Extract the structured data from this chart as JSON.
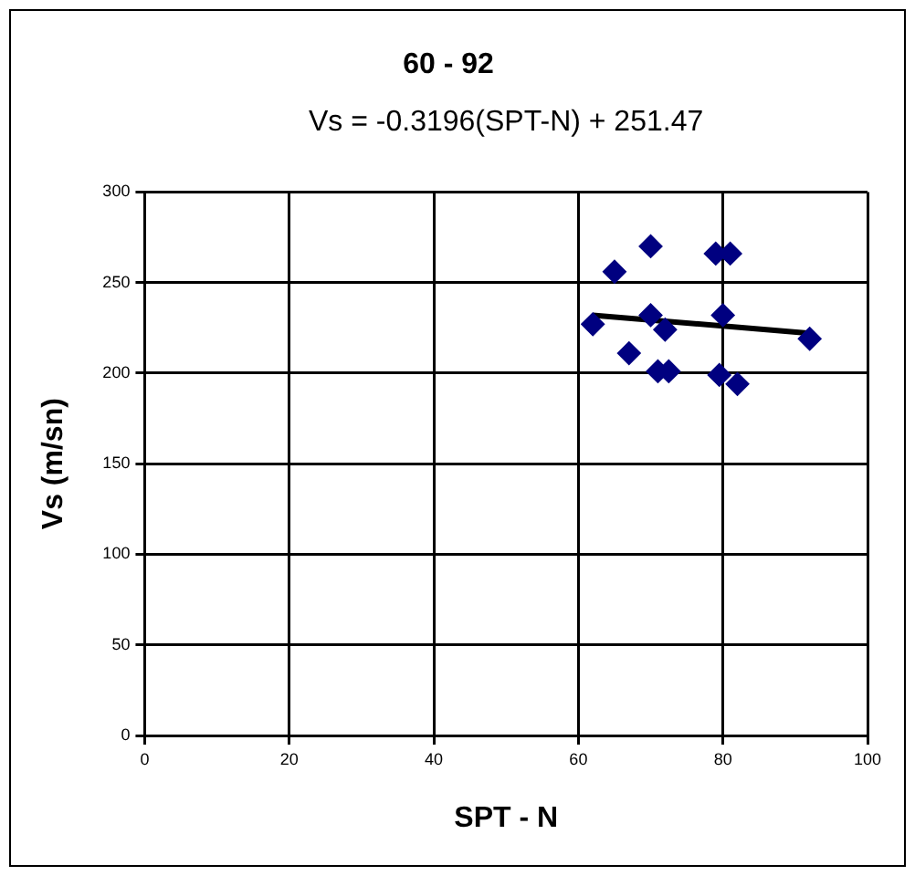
{
  "chart_data": {
    "type": "scatter",
    "title": "60 - 92",
    "xlabel": "SPT - N",
    "ylabel": "Vs (m/sn)",
    "annotations": [
      "Vs = -0.3196(SPT-N) + 251.47"
    ],
    "xlim": [
      0,
      100
    ],
    "xticks": [
      0,
      20,
      40,
      60,
      80,
      100
    ],
    "ylim": [
      0,
      300
    ],
    "yticks": [
      0,
      50,
      100,
      150,
      200,
      250,
      300
    ],
    "grid": true,
    "legend": false,
    "marker": "diamond",
    "series": [
      {
        "color": "#000080",
        "x": [
          62,
          65,
          70,
          79,
          81,
          70,
          72,
          67,
          71,
          72.5,
          79.5,
          82,
          80,
          92
        ],
        "values": [
          227,
          256,
          270,
          266,
          266,
          232,
          224,
          211,
          201,
          201,
          199,
          194,
          232,
          219
        ]
      },
      {
        "type": "line",
        "color": "#000000",
        "marker": "none",
        "line_style": "solid",
        "x": [
          62,
          92
        ],
        "values": [
          232,
          222
        ]
      }
    ]
  }
}
